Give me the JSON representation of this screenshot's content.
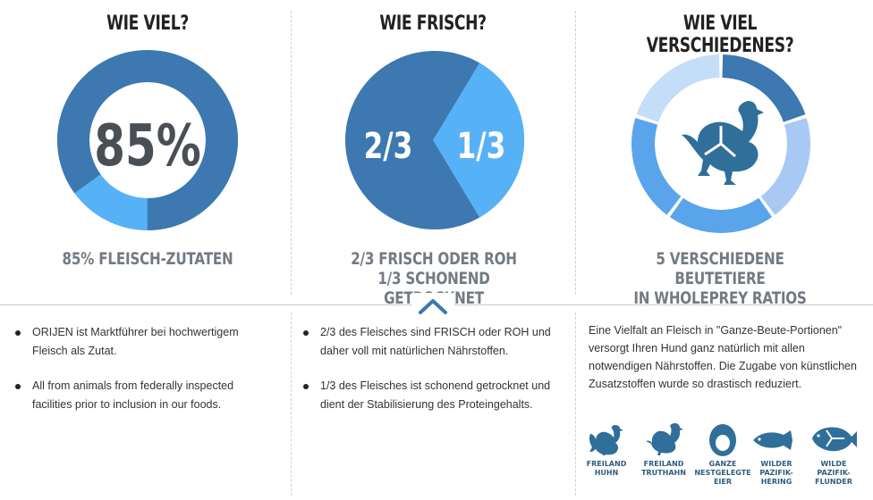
{
  "columns": [
    {
      "title": "WIE VIEL?",
      "center_text": "85%",
      "caption_line1": "85% FLEISCH-ZUTATEN",
      "caption_line2": "",
      "percent": 85
    },
    {
      "title": "WIE FRISCH?",
      "left_text": "2/3",
      "right_text": "1/3",
      "caption_line1": "2/3 FRISCH ODER ROH",
      "caption_line2": "1/3 SCHONEND GETROCKNET",
      "fractions": [
        0.667,
        0.333
      ]
    },
    {
      "title": "WIE VIEL VERSCHIEDENES?",
      "caption_line1": "5 VERSCHIEDENE BEUTETIERE",
      "caption_line2": "IN WHOLEPREY RATIOS",
      "center_icon": "chicken-icon",
      "segments": 5
    }
  ],
  "details": {
    "col1_bullets": [
      "ORIJEN ist Marktführer bei hochwertigem Fleisch als Zutat.",
      "All from animals from federally inspected facilities prior to inclusion in our foods."
    ],
    "col2_bullets": [
      "2/3 des Fleisches sind FRISCH oder ROH und daher voll mit natürlichen Nährstoffen.",
      "1/3 des Fleisches ist schonend getrocknet und dient der Stabilisierung des Proteingehalts."
    ],
    "col3_paragraph": "Eine Vielfalt an Fleisch in \"Ganze-Beute-Portionen\" versorgt Ihren Hund ganz natürlich mit allen notwendigen Nährstoffen. Die Zugabe von künstlichen Zusatzstoffen wurde so drastisch reduziert."
  },
  "prey_icons": [
    {
      "icon": "chicken-icon",
      "label": "FREILAND\nHUHN"
    },
    {
      "icon": "turkey-icon",
      "label": "FREILAND\nTRUTHAHN"
    },
    {
      "icon": "egg-icon",
      "label": "GANZE\nNESTGELEGTE\nEIER"
    },
    {
      "icon": "herring-icon",
      "label": "WILDER\nPAZIFIK-\nHERING"
    },
    {
      "icon": "flounder-icon",
      "label": "WILDE\nPAZIFIK-\nFLUNDER"
    }
  ],
  "colors": {
    "dark_blue": "#3d78b0",
    "light_blue": "#57b1f7",
    "pale_blue": "#a8c9f4",
    "very_pale_blue": "#c4ddf9",
    "mid_blue": "#5aa4ec",
    "icon_blue": "#2f6f9a",
    "caption_grey": "#737a82"
  }
}
